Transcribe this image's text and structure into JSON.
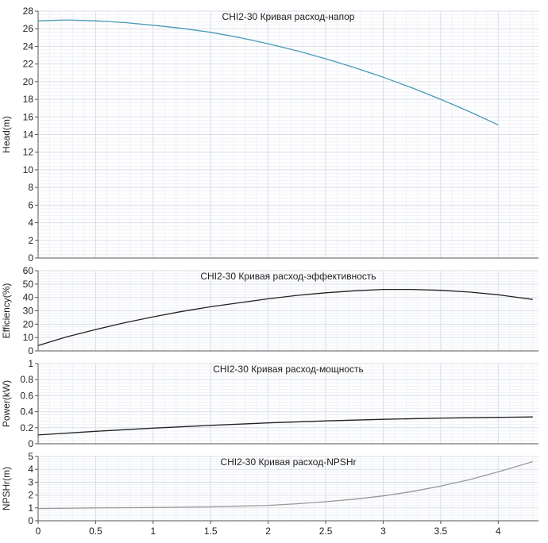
{
  "chart_data": [
    {
      "type": "line",
      "title": "CHI2-30 Кривая расход-напор",
      "xlabel": "",
      "ylabel": "Head(m)",
      "xlim": [
        0,
        4.35
      ],
      "ylim": [
        0,
        28
      ],
      "yticks": [
        0,
        2,
        4,
        6,
        8,
        10,
        12,
        14,
        16,
        18,
        20,
        22,
        24,
        26,
        28
      ],
      "grid": true,
      "series": [
        {
          "color": "#4a9ab8",
          "x": [
            0,
            0.25,
            0.5,
            0.75,
            1.0,
            1.25,
            1.5,
            1.75,
            2.0,
            2.25,
            2.5,
            2.75,
            3.0,
            3.25,
            3.5,
            3.75,
            4.0
          ],
          "y": [
            26.9,
            27.0,
            26.9,
            26.7,
            26.4,
            26.05,
            25.6,
            25.0,
            24.3,
            23.5,
            22.6,
            21.6,
            20.5,
            19.3,
            18.0,
            16.6,
            15.1
          ]
        }
      ]
    },
    {
      "type": "line",
      "title": "CHI2-30 Кривая расход-эффективность",
      "xlabel": "",
      "ylabel": "Efficiency(%)",
      "xlim": [
        0,
        4.35
      ],
      "ylim": [
        0,
        60
      ],
      "yticks": [
        0,
        10,
        20,
        30,
        40,
        50,
        60
      ],
      "grid": true,
      "series": [
        {
          "color": "#222222",
          "x": [
            0,
            0.25,
            0.5,
            0.75,
            1.0,
            1.25,
            1.5,
            1.75,
            2.0,
            2.25,
            2.5,
            2.75,
            3.0,
            3.25,
            3.5,
            3.75,
            4.0,
            4.3
          ],
          "y": [
            4,
            10.5,
            16,
            21,
            25.5,
            29.5,
            33,
            36,
            39,
            41.5,
            43.5,
            45,
            46,
            46,
            45.3,
            44,
            42,
            38.5
          ]
        }
      ]
    },
    {
      "type": "line",
      "title": "CHI2-30 Кривая расход-мощность",
      "xlabel": "",
      "ylabel": "Power(kW)",
      "xlim": [
        0,
        4.35
      ],
      "ylim": [
        0,
        1
      ],
      "yticks": [
        0,
        0.2,
        0.4,
        0.6,
        0.8,
        1
      ],
      "grid": true,
      "series": [
        {
          "color": "#222222",
          "x": [
            0,
            0.5,
            1.0,
            1.5,
            2.0,
            2.5,
            3.0,
            3.5,
            4.0,
            4.3
          ],
          "y": [
            0.11,
            0.155,
            0.195,
            0.23,
            0.26,
            0.285,
            0.305,
            0.32,
            0.33,
            0.335
          ]
        }
      ]
    },
    {
      "type": "line",
      "title": "CHI2-30 Кривая расход-NPSHr",
      "xlabel": "",
      "ylabel": "NPSHr(m)",
      "xlim": [
        0,
        4.35
      ],
      "ylim": [
        0,
        5
      ],
      "yticks": [
        0,
        1,
        2,
        3,
        4,
        5
      ],
      "xticks": [
        0,
        0.5,
        1,
        1.5,
        2,
        2.5,
        3,
        3.5,
        4
      ],
      "grid": true,
      "series": [
        {
          "color": "#999999",
          "x": [
            0,
            0.5,
            1.0,
            1.5,
            2.0,
            2.25,
            2.5,
            2.75,
            3.0,
            3.25,
            3.5,
            3.75,
            4.0,
            4.3
          ],
          "y": [
            0.95,
            1.0,
            1.03,
            1.08,
            1.2,
            1.32,
            1.48,
            1.68,
            1.93,
            2.27,
            2.7,
            3.2,
            3.8,
            4.6
          ]
        }
      ]
    }
  ]
}
